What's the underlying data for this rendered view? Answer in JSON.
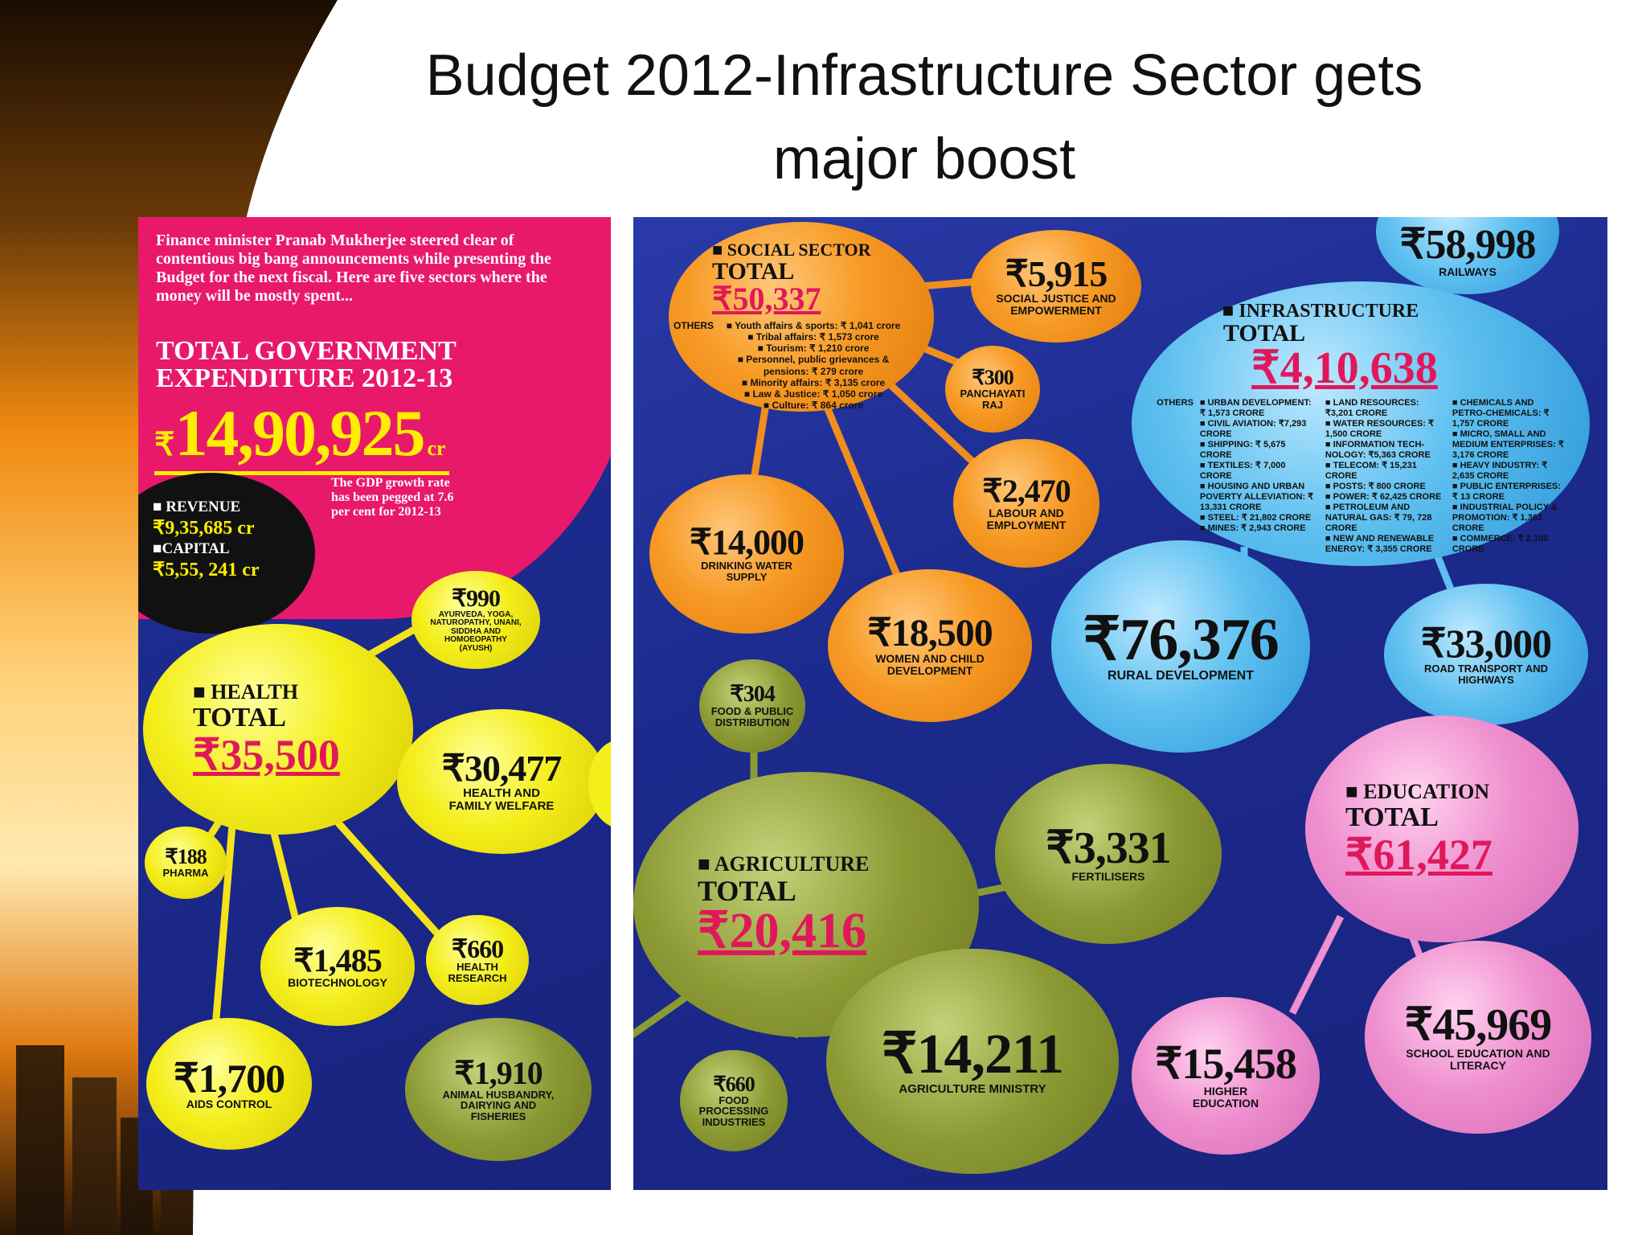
{
  "slide": {
    "title_line1": "Budget 2012-Infrastructure Sector gets",
    "title_line2": "major boost"
  },
  "colors": {
    "panel_blue": "#1b2a8c",
    "pink": "#e8196b",
    "yellow": "#f4ee1a",
    "orange": "#f79a24",
    "green": "#8c9a34",
    "sky_blue": "#5ec0f0",
    "light_pink": "#ef8fcf",
    "highlight_red": "#e0185a"
  },
  "intro": {
    "text": "Finance minister Pranab Mukherjee steered clear of contentious big bang announcements while presenting the Budget for the next fiscal. Here are five sectors where the money will be mostly spent...",
    "heading_line1": "TOTAL GOVERNMENT",
    "heading_line2": "EXPENDITURE 2012-13",
    "amount_symbol": "₹",
    "amount": "14,90,925",
    "amount_unit": "cr",
    "gdp_note": "The GDP growth rate has been pegged at 7.6 per cent for 2012-13"
  },
  "revenue_capital": {
    "revenue_label": "■ REVENUE",
    "revenue_value": "₹9,35,685 cr",
    "capital_label": "■CAPITAL",
    "capital_value": "₹5,55, 241 cr"
  },
  "health": {
    "sector": "■ HEALTH",
    "total_label": "TOTAL",
    "total": "₹35,500",
    "items": [
      {
        "amount": "₹990",
        "label": "AYURVEDA, YOGA, NATUROPATHY, UNANI, SIDDHA AND HOMOEOPATHY (AYUSH)"
      },
      {
        "amount": "₹30,477",
        "label": "HEALTH AND FAMILY WELFARE"
      },
      {
        "amount": "₹188",
        "label": "PHARMA"
      },
      {
        "amount": "₹1,485",
        "label": "BIOTECHNOLOGY"
      },
      {
        "amount": "₹660",
        "label": "HEALTH RESEARCH"
      },
      {
        "amount": "₹1,700",
        "label": "AIDS CONTROL"
      }
    ]
  },
  "social": {
    "sector": "■ SOCIAL SECTOR",
    "total_label": "TOTAL",
    "total": "₹50,337",
    "others_label": "OTHERS",
    "others": [
      "■ Youth affairs & sports: ₹ 1,041 crore",
      "■ Tribal affairs: ₹ 1,573 crore",
      "■ Tourism: ₹ 1,210 crore",
      "■ Personnel, public grievances & pensions: ₹ 279 crore",
      "■ Minority affairs: ₹ 3,135 crore",
      "■ Law & Justice: ₹ 1,050 crore",
      "■ Culture: ₹ 864 crore"
    ],
    "items": [
      {
        "amount": "₹5,915",
        "label": "SOCIAL JUSTICE AND EMPOWERMENT"
      },
      {
        "amount": "₹300",
        "label": "PANCHAYATI RAJ"
      },
      {
        "amount": "₹2,470",
        "label": "LABOUR AND EMPLOYMENT"
      },
      {
        "amount": "₹14,000",
        "label": "DRINKING WATER SUPPLY"
      },
      {
        "amount": "₹18,500",
        "label": "WOMEN AND CHILD DEVELOPMENT"
      }
    ]
  },
  "infrastructure": {
    "sector": "■ INFRASTRUCTURE",
    "total_label": "TOTAL",
    "total": "₹4,10,638",
    "others_label": "OTHERS",
    "others_col1": [
      "■ URBAN DEVELOPMENT: ₹ 1,573 CRORE",
      "■ CIVIL AVIATION: ₹7,293 CRORE",
      "■ SHIPPING: ₹ 5,675 CRORE",
      "■ TEXTILES: ₹ 7,000 CRORE",
      "■ HOUSING AND URBAN POVERTY ALLEVIATION: ₹ 13,331 CRORE",
      "■ STEEL: ₹ 21,802 CRORE",
      "■ MINES: ₹ 2,943 CRORE"
    ],
    "others_col2": [
      "■ LAND RESOURCES: ₹3,201 CRORE",
      "■ WATER RESOURCES: ₹ 1,500 CRORE",
      "■ INFORMATION TECH-NOLOGY: ₹5,363 CRORE",
      "■ TELECOM: ₹ 15,231 CRORE",
      "■ POSTS: ₹ 800 CRORE",
      "■ POWER: ₹ 62,425 CRORE",
      "■ PETROLEUM AND NATURAL GAS: ₹ 79, 728 CRORE",
      "■ NEW AND RENEWABLE ENERGY: ₹ 3,355 CRORE"
    ],
    "others_col3": [
      "■ CHEMICALS AND PETRO-CHEMICALS: ₹ 1,757 CRORE",
      "■ MICRO, SMALL AND MEDIUM ENTERPRISES: ₹ 3,176 CRORE",
      "■ HEAVY INDUSTRY: ₹ 2,635 CRORE",
      "■ PUBLIC ENTERPRISES: ₹ 13 CRORE",
      "■ INDUSTRIAL POLICY & PROMOTION: ₹ 1,363 CRORE",
      "■ COMMERCE: ₹ 2,100 CRORE"
    ],
    "items": [
      {
        "amount": "₹58,998",
        "label": "RAILWAYS"
      },
      {
        "amount": "₹76,376",
        "label": "RURAL DEVELOPMENT"
      },
      {
        "amount": "₹33,000",
        "label": "ROAD TRANSPORT AND HIGHWAYS"
      }
    ]
  },
  "agriculture": {
    "sector": "■ AGRICULTURE",
    "total_label": "TOTAL",
    "total": "₹20,416",
    "items": [
      {
        "amount": "₹304",
        "label": "FOOD & PUBLIC DISTRIBUTION"
      },
      {
        "amount": "₹3,331",
        "label": "FERTILISERS"
      },
      {
        "amount": "₹14,211",
        "label": "AGRICULTURE MINISTRY"
      },
      {
        "amount": "₹660",
        "label": "FOOD PROCESSING INDUSTRIES"
      },
      {
        "amount": "₹1,910",
        "label": "ANIMAL HUSBANDRY, DAIRYING AND FISHERIES"
      }
    ]
  },
  "education": {
    "sector": "■ EDUCATION",
    "total_label": "TOTAL",
    "total": "₹61,427",
    "items": [
      {
        "amount": "₹15,458",
        "label": "HIGHER EDUCATION"
      },
      {
        "amount": "₹45,969",
        "label": "SCHOOL EDUCATION AND LITERACY"
      }
    ]
  }
}
